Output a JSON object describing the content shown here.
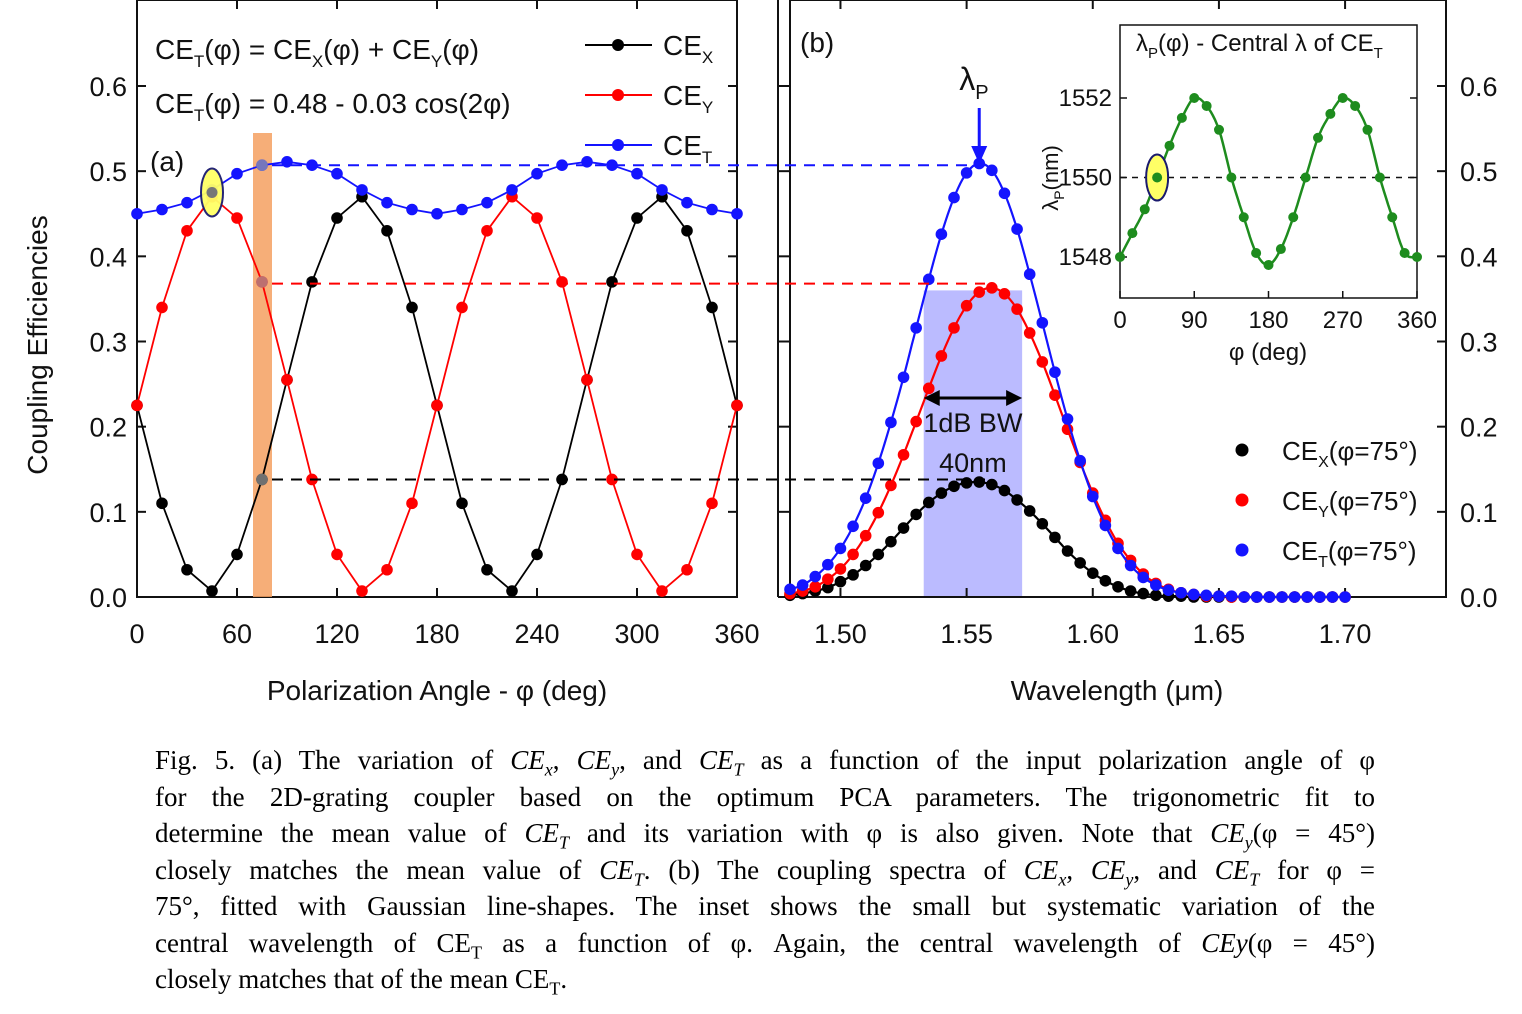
{
  "colors": {
    "ce_x": "#000000",
    "ce_y": "#ff0000",
    "ce_t": "#1414ff",
    "inset_series": "#1e8c1e",
    "bandwidth_fill": "#aaaaff",
    "highlight_bar": "#f5a060",
    "marker_highlight": "#ffff66"
  },
  "chart_data": [
    {
      "id": "a",
      "type": "line",
      "panel_label": "(a)",
      "xlabel": "Polarization Angle - φ (deg)",
      "ylabel": "Coupling Efficiencies",
      "xlim": [
        0,
        360
      ],
      "ylim": [
        0,
        0.65
      ],
      "xticks": [
        "0",
        "60",
        "120",
        "180",
        "240",
        "300",
        "360"
      ],
      "yticks": [
        "0.0",
        "0.1",
        "0.2",
        "0.3",
        "0.4",
        "0.5",
        "0.6"
      ],
      "equations": [
        {
          "lhs_base": "CE",
          "lhs_sub": "T",
          "mid": "(φ) = CE",
          "sub1": "X",
          "mid2": "(φ) + CE",
          "sub2": "Y",
          "tail": "(φ)"
        },
        {
          "lhs_base": "CE",
          "lhs_sub": "T",
          "rest": "(φ) = 0.48 - 0.03 cos(2φ)"
        }
      ],
      "legend": [
        {
          "base": "CE",
          "sub": "X"
        },
        {
          "base": "CE",
          "sub": "Y"
        },
        {
          "base": "CE",
          "sub": "T"
        }
      ],
      "highlight_angle": 75,
      "marked_point": {
        "x": 45,
        "y": 0.475
      },
      "x": [
        0,
        15,
        30,
        45,
        60,
        75,
        90,
        105,
        120,
        135,
        150,
        165,
        180,
        195,
        210,
        225,
        240,
        255,
        270,
        285,
        300,
        315,
        330,
        345,
        360
      ],
      "series": [
        {
          "key": "ce_x",
          "values": [
            0.225,
            0.11,
            0.032,
            0.007,
            0.05,
            0.138,
            0.255,
            0.37,
            0.445,
            0.47,
            0.43,
            0.34,
            0.225,
            0.11,
            0.032,
            0.007,
            0.05,
            0.138,
            0.255,
            0.37,
            0.445,
            0.47,
            0.43,
            0.34,
            0.225
          ]
        },
        {
          "key": "ce_y",
          "values": [
            0.225,
            0.34,
            0.43,
            0.47,
            0.445,
            0.37,
            0.255,
            0.138,
            0.05,
            0.007,
            0.032,
            0.11,
            0.225,
            0.34,
            0.43,
            0.47,
            0.445,
            0.37,
            0.255,
            0.138,
            0.05,
            0.007,
            0.032,
            0.11,
            0.225
          ]
        },
        {
          "key": "ce_t",
          "values": [
            0.45,
            0.455,
            0.463,
            0.478,
            0.497,
            0.507,
            0.511,
            0.507,
            0.497,
            0.478,
            0.463,
            0.455,
            0.45,
            0.455,
            0.463,
            0.478,
            0.497,
            0.507,
            0.511,
            0.507,
            0.497,
            0.478,
            0.463,
            0.455,
            0.45
          ]
        }
      ],
      "reference_levels": [
        {
          "key": "ce_t",
          "y": 0.507
        },
        {
          "key": "ce_y",
          "y": 0.368
        },
        {
          "key": "ce_x",
          "y": 0.138
        }
      ]
    },
    {
      "id": "b",
      "type": "scatter",
      "panel_label": "(b)",
      "xlabel": "Wavelength (μm)",
      "xlim": [
        1.48,
        1.74
      ],
      "ylim": [
        0,
        0.65
      ],
      "xticks": [
        "1.50",
        "1.55",
        "1.60",
        "1.65",
        "1.70"
      ],
      "yticks": [
        "0.0",
        "0.1",
        "0.2",
        "0.3",
        "0.4",
        "0.5",
        "0.6"
      ],
      "peak_label": {
        "base": "λ",
        "sub": "P"
      },
      "bandwidth": {
        "x_start": 1.533,
        "x_end": 1.572,
        "line1": "1dB BW",
        "line2": "40nm"
      },
      "legend": [
        {
          "base": "CE",
          "sub": "X",
          "rest": "(φ=75°)"
        },
        {
          "base": "CE",
          "sub": "Y",
          "rest": "(φ=75°)"
        },
        {
          "base": "CE",
          "sub": "T",
          "rest": "(φ=75°)"
        }
      ],
      "x": [
        1.48,
        1.485,
        1.49,
        1.495,
        1.5,
        1.505,
        1.51,
        1.515,
        1.52,
        1.525,
        1.53,
        1.535,
        1.54,
        1.545,
        1.55,
        1.555,
        1.56,
        1.565,
        1.57,
        1.575,
        1.58,
        1.585,
        1.59,
        1.595,
        1.6,
        1.605,
        1.61,
        1.615,
        1.62,
        1.625,
        1.63,
        1.635,
        1.64,
        1.645,
        1.65,
        1.655,
        1.66,
        1.665,
        1.67,
        1.675,
        1.68,
        1.685,
        1.69,
        1.695,
        1.7
      ],
      "series": [
        {
          "key": "ce_x",
          "values": [
            0.002,
            0.004,
            0.007,
            0.011,
            0.018,
            0.026,
            0.037,
            0.05,
            0.065,
            0.081,
            0.097,
            0.111,
            0.122,
            0.13,
            0.134,
            0.135,
            0.132,
            0.125,
            0.114,
            0.101,
            0.086,
            0.07,
            0.054,
            0.04,
            0.028,
            0.019,
            0.012,
            0.007,
            0.004,
            0.002,
            0.001,
            0.001,
            0.0,
            0.0,
            0.0,
            0.0,
            0.0,
            0.0,
            0.0,
            0.0,
            0.0,
            0.0,
            0.0,
            0.0,
            0.0
          ]
        },
        {
          "key": "ce_y",
          "values": [
            0.004,
            0.007,
            0.012,
            0.021,
            0.033,
            0.05,
            0.072,
            0.099,
            0.131,
            0.167,
            0.206,
            0.245,
            0.283,
            0.316,
            0.342,
            0.358,
            0.363,
            0.356,
            0.338,
            0.31,
            0.276,
            0.237,
            0.197,
            0.158,
            0.122,
            0.09,
            0.063,
            0.043,
            0.027,
            0.016,
            0.009,
            0.005,
            0.003,
            0.001,
            0.001,
            0.0,
            0.0,
            0.0,
            0.0,
            0.0,
            0.0,
            0.0,
            0.0,
            0.0,
            0.0
          ]
        },
        {
          "key": "ce_t",
          "values": [
            0.009,
            0.014,
            0.024,
            0.038,
            0.057,
            0.083,
            0.116,
            0.157,
            0.205,
            0.258,
            0.316,
            0.373,
            0.426,
            0.469,
            0.498,
            0.509,
            0.501,
            0.474,
            0.432,
            0.379,
            0.322,
            0.264,
            0.209,
            0.16,
            0.118,
            0.084,
            0.057,
            0.037,
            0.023,
            0.014,
            0.008,
            0.005,
            0.003,
            0.002,
            0.001,
            0.001,
            0.0,
            0.0,
            0.0,
            0.0,
            0.0,
            0.0,
            0.0,
            0.0,
            0.0
          ]
        }
      ]
    },
    {
      "id": "inset",
      "type": "line",
      "title": {
        "base": "λ",
        "sub1": "P",
        "mid": "(φ) - Central λ of CE",
        "sub2": "T"
      },
      "xlabel": "φ (deg)",
      "ylabel": {
        "base": "λ",
        "sub": "P",
        "rest": "(nm)"
      },
      "xlim": [
        0,
        360
      ],
      "ylim": [
        1546,
        1553
      ],
      "xticks": [
        "0",
        "90",
        "180",
        "270",
        "360"
      ],
      "yticks": [
        "1548",
        "1550",
        "1552"
      ],
      "reference_y": 1550,
      "marked_point": {
        "x": 45,
        "y": 1550
      },
      "x": [
        0,
        15,
        30,
        45,
        60,
        75,
        90,
        105,
        120,
        135,
        150,
        165,
        180,
        195,
        210,
        225,
        240,
        255,
        270,
        285,
        300,
        315,
        330,
        345,
        360
      ],
      "values": [
        1548,
        1548.6,
        1549.2,
        1550,
        1550.8,
        1551.5,
        1552,
        1551.8,
        1551.2,
        1550,
        1549,
        1548.1,
        1547.8,
        1548.2,
        1549,
        1550,
        1551,
        1551.6,
        1552,
        1551.8,
        1551.2,
        1550,
        1549,
        1548.1,
        1548
      ]
    }
  ],
  "caption": {
    "lines": [
      [
        {
          "t": "Fig. 5. (a) The variation of "
        },
        {
          "t": "CE",
          "i": 1
        },
        {
          "t": "x",
          "i": 1,
          "s": "sub"
        },
        {
          "t": ", "
        },
        {
          "t": "CE",
          "i": 1
        },
        {
          "t": "y",
          "i": 1,
          "s": "sub"
        },
        {
          "t": ", and "
        },
        {
          "t": "CE",
          "i": 1
        },
        {
          "t": "T",
          "i": 1,
          "s": "sub"
        },
        {
          "t": " as a function of the input polarization angle of φ"
        }
      ],
      [
        {
          "t": "for the 2D-grating coupler based on the optimum PCA parameters. The trigonometric fit to"
        }
      ],
      [
        {
          "t": "determine the mean value of "
        },
        {
          "t": "CE",
          "i": 1
        },
        {
          "t": "T",
          "i": 1,
          "s": "sub"
        },
        {
          "t": " and its variation with φ is also given. Note that "
        },
        {
          "t": "CE",
          "i": 1
        },
        {
          "t": "y",
          "i": 1,
          "s": "sub"
        },
        {
          "t": "(φ = 45°)"
        }
      ],
      [
        {
          "t": "closely matches the mean value of "
        },
        {
          "t": "CE",
          "i": 1
        },
        {
          "t": "T",
          "i": 1,
          "s": "sub"
        },
        {
          "t": ". (b) The coupling spectra of "
        },
        {
          "t": "CE",
          "i": 1
        },
        {
          "t": "x",
          "i": 1,
          "s": "sub"
        },
        {
          "t": ", "
        },
        {
          "t": "CE",
          "i": 1
        },
        {
          "t": "y",
          "i": 1,
          "s": "sub"
        },
        {
          "t": ", and "
        },
        {
          "t": "CE",
          "i": 1
        },
        {
          "t": "T",
          "i": 1,
          "s": "sub"
        },
        {
          "t": " for φ ="
        }
      ],
      [
        {
          "t": "75°, fitted with Gaussian line-shapes. The inset shows the small but systematic variation of the"
        }
      ],
      [
        {
          "t": "central wavelength of CE"
        },
        {
          "t": "T",
          "s": "sub"
        },
        {
          "t": " as a function of φ. Again, the central wavelength of "
        },
        {
          "t": "CEy",
          "i": 1
        },
        {
          "t": "(φ = 45°)"
        }
      ],
      [
        {
          "t": "closely matches that of the mean CE"
        },
        {
          "t": "T",
          "s": "sub"
        },
        {
          "t": "."
        }
      ]
    ]
  }
}
